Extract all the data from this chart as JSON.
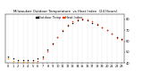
{
  "title": "Milwaukee Outdoor Temperature  vs Heat Index  (24 Hours)",
  "title_fontsize": 2.8,
  "title_color": "#000000",
  "background_color": "#ffffff",
  "grid_color": "#aaaaaa",
  "hours": [
    0,
    1,
    2,
    3,
    4,
    5,
    6,
    7,
    8,
    9,
    10,
    11,
    12,
    13,
    14,
    15,
    16,
    17,
    18,
    19,
    20,
    21,
    22,
    23
  ],
  "temp": [
    46,
    44,
    43,
    43,
    43,
    43,
    44,
    46,
    52,
    58,
    64,
    69,
    74,
    77,
    79,
    80,
    79,
    77,
    75,
    73,
    70,
    67,
    64,
    62
  ],
  "heat_index": [
    44,
    42,
    41,
    41,
    41,
    41,
    42,
    44,
    51,
    57,
    64,
    70,
    75,
    78,
    80,
    81,
    80,
    78,
    76,
    73,
    70,
    67,
    63,
    61
  ],
  "temp_color": "#000000",
  "heat_color": "#ff3300",
  "legend_temp": "Outdoor Temp",
  "legend_heat": "Heat Index",
  "ylim": [
    40,
    85
  ],
  "ytick_vals": [
    40,
    50,
    60,
    70,
    80
  ],
  "ytick_labels": [
    "40",
    "50",
    "60",
    "70",
    "80"
  ],
  "tick_fontsize": 2.5,
  "marker_size": 1.2,
  "legend_fontsize": 2.5,
  "orange_color": "#ff8800"
}
